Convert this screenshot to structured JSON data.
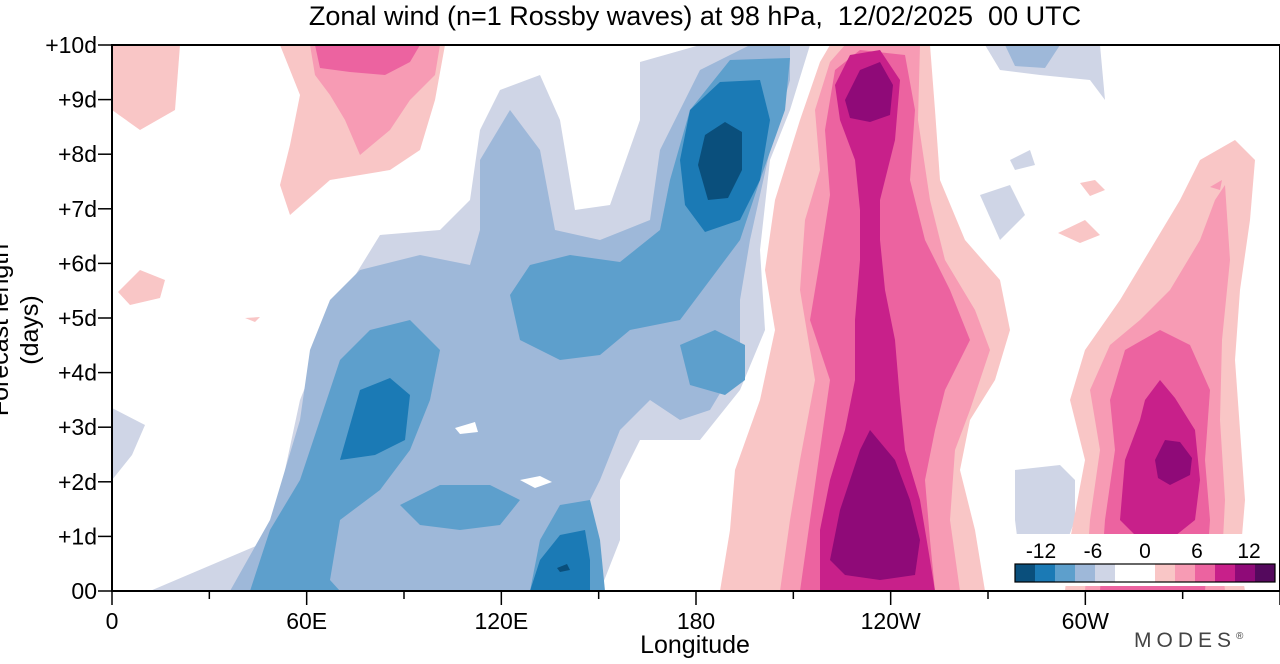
{
  "title": "Zonal wind (n=1 Rossby waves) at 98 hPa,  12/02/2025  00 UTC",
  "logo": {
    "text": "MODES",
    "mark": "®"
  },
  "colors": {
    "levels": [
      "#0a4f7c",
      "#1b7ab5",
      "#5d9fcc",
      "#9eb8d9",
      "#cfd5e6",
      "#ffffff",
      "#ffffff",
      "#f9c6c6",
      "#f79bb4",
      "#ec63a0",
      "#c8208a",
      "#8f0a78",
      "#54095d"
    ],
    "negative_fill": [
      "#cfd5e6",
      "#9eb8d9",
      "#5d9fcc",
      "#1b7ab5",
      "#0a4f7c"
    ],
    "positive_fill": [
      "#f9c6c6",
      "#f79bb4",
      "#ec63a0",
      "#c8208a",
      "#8f0a78"
    ]
  },
  "chart_data": {
    "type": "heatmap",
    "title": "Zonal wind (n=1 Rossby waves) at 98 hPa,  12/02/2025  00 UTC",
    "xlabel": "Longitude",
    "ylabel": "Forecast length (days)",
    "x_tick_labels": [
      "0",
      "60E",
      "120E",
      "180",
      "120W",
      "60W"
    ],
    "x_tick_values_deg_east": [
      0,
      60,
      120,
      180,
      240,
      300
    ],
    "x_range_deg_east": [
      0,
      360
    ],
    "y_tick_labels": [
      "00",
      "+1d",
      "+2d",
      "+3d",
      "+4d",
      "+5d",
      "+6d",
      "+7d",
      "+8d",
      "+9d",
      "+10d"
    ],
    "y_tick_values_days": [
      0,
      1,
      2,
      3,
      4,
      5,
      6,
      7,
      8,
      9,
      10
    ],
    "y_range_days": [
      0,
      10
    ],
    "colorbar": {
      "tick_labels": [
        "-12",
        "-6",
        "0",
        "6",
        "12"
      ],
      "tick_values": [
        -12,
        -6,
        0,
        6,
        12
      ],
      "range": [
        -15,
        15
      ],
      "level_step": 2,
      "location": "bottom-right"
    },
    "features": [
      {
        "sign": "negative",
        "peak": -14,
        "lon_east": 185,
        "day": 7.8
      },
      {
        "sign": "negative",
        "peak": -12,
        "lon_east": 85,
        "day": 3.2
      },
      {
        "sign": "negative",
        "peak": -12,
        "lon_east": 140,
        "day": 0.5
      },
      {
        "sign": "positive",
        "peak": 13,
        "lon_east": 240,
        "day": 1.2
      },
      {
        "sign": "positive",
        "peak": 11,
        "lon_east": 235,
        "day": 9.2
      },
      {
        "sign": "positive",
        "peak": 13,
        "lon_east": 323,
        "day": 2.5
      },
      {
        "sign": "positive",
        "peak": 6,
        "lon_east": 75,
        "day": 9.5
      }
    ],
    "grid": false
  },
  "labels": {
    "xlabel": "Longitude",
    "ylabel": "Forecast length (days)"
  }
}
